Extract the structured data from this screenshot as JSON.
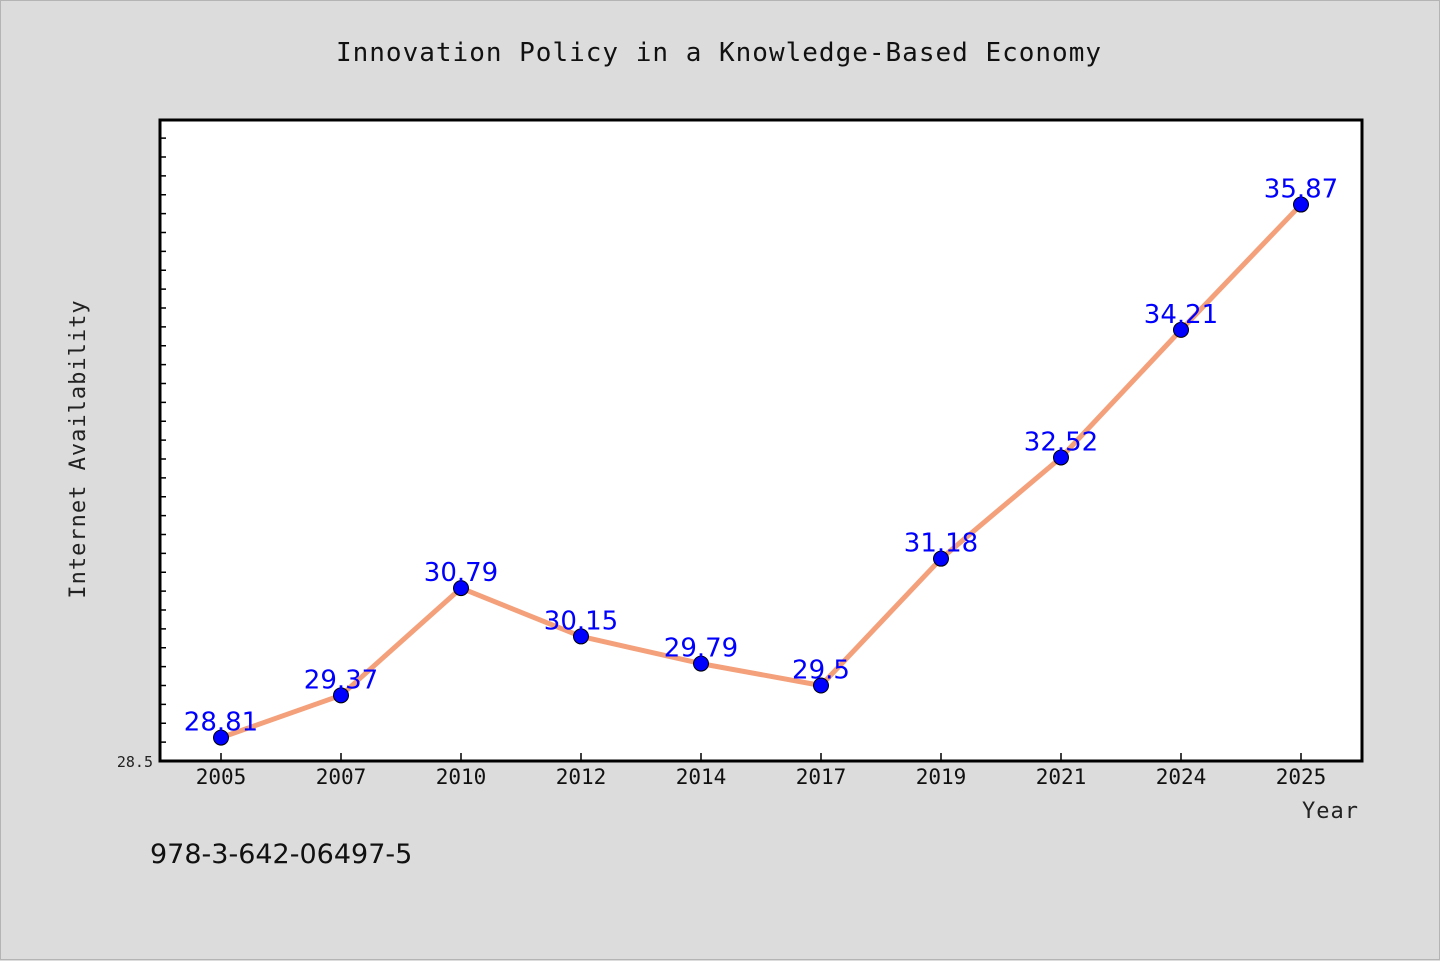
{
  "chart_data": {
    "type": "line",
    "title": "Innovation Policy in a Knowledge-Based Economy",
    "xlabel": "Year",
    "ylabel": "Internet Availability",
    "categories": [
      "2005",
      "2007",
      "2010",
      "2012",
      "2014",
      "2017",
      "2019",
      "2021",
      "2024",
      "2025"
    ],
    "values": [
      28.81,
      29.37,
      30.79,
      30.15,
      29.79,
      29.5,
      31.18,
      32.52,
      34.21,
      35.87
    ],
    "data_labels": [
      "28.81",
      "29.37",
      "30.79",
      "30.15",
      "29.79",
      "29.5",
      "31.18",
      "32.52",
      "34.21",
      "35.87"
    ],
    "y_min_label": "28.5",
    "ylim": [
      28.5,
      36.99
    ],
    "grid": false,
    "legend": "none",
    "line_color": "#f4a07a",
    "marker_color": "#0000ff"
  },
  "footer_text": "978-3-642-06497-5"
}
